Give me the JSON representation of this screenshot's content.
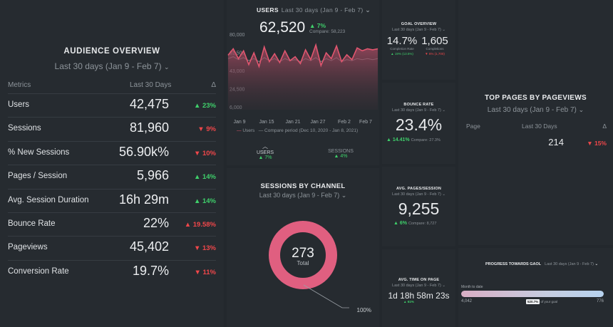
{
  "audience": {
    "title": "AUDIENCE OVERVIEW",
    "range": "Last 30 days (Jan 9 - Feb 7)",
    "headers": {
      "metric": "Metrics",
      "period": "Last 30 Days",
      "delta": "Δ"
    },
    "rows": [
      {
        "label": "Users",
        "value": "42,475",
        "delta": "▲ 23%",
        "dir": "up"
      },
      {
        "label": "Sessions",
        "value": "81,960",
        "delta": "▼ 9%",
        "dir": "down"
      },
      {
        "label": "% New Sessions",
        "value": "56.90k%",
        "delta": "▼ 10%",
        "dir": "down"
      },
      {
        "label": "Pages / Session",
        "value": "5,966",
        "delta": "▲ 14%",
        "dir": "up"
      },
      {
        "label": "Avg. Session Duration",
        "value": "16h 29m",
        "delta": "▲ 14%",
        "dir": "up"
      },
      {
        "label": "Bounce Rate",
        "value": "22%",
        "delta": "▲ 19.58%",
        "dir": "down"
      },
      {
        "label": "Pageviews",
        "value": "45,402",
        "delta": "▼ 13%",
        "dir": "down"
      },
      {
        "label": "Conversion Rate",
        "value": "19.7%",
        "delta": "▼ 11%",
        "dir": "down"
      }
    ]
  },
  "users": {
    "title": "USERS",
    "range": "Last 30 days (Jan 9 - Feb 7)",
    "value": "62,520",
    "delta": "▲ 7%",
    "compare": "Compare: 58,223",
    "legend_current": "Users",
    "legend_compare": "Compare period (Dec 10, 2020 - Jan 8, 2021)",
    "tabs": [
      {
        "label": "USERS",
        "delta": "▲ 7%"
      },
      {
        "label": "SESSIONS",
        "delta": "▲ 4%"
      }
    ],
    "chart_data": {
      "type": "area",
      "y_ticks": [
        "80,000",
        "61,500",
        "43,000",
        "24,500",
        "6,000"
      ],
      "ylim": [
        6000,
        80000
      ],
      "x_ticks": [
        "Jan 9",
        "Jan 15",
        "Jan 21",
        "Jan 27",
        "Feb 2",
        "Feb 7"
      ],
      "series": [
        {
          "name": "Users",
          "color": "#e0566f",
          "values": [
            61500,
            68000,
            58000,
            66000,
            52000,
            64000,
            50000,
            70000,
            55000,
            63000,
            54000,
            66000,
            56000,
            60000,
            53000,
            67000,
            57000,
            72000,
            51000,
            64000,
            58000,
            71000,
            55000,
            62000,
            57000,
            69000,
            66000,
            68000,
            67000,
            68000
          ]
        },
        {
          "name": "Compare period (Dec 10, 2020 - Jan 8, 2021)",
          "color": "#7c7f86",
          "values": [
            58000,
            60000,
            57000,
            59000,
            56000,
            58000,
            55000,
            59000,
            56000,
            58000,
            55000,
            58000,
            56000,
            57000,
            55000,
            58000,
            56000,
            59000,
            55000,
            58000,
            56000,
            59000,
            55000,
            57000,
            56000,
            58000,
            57000,
            58000,
            57000,
            58000
          ]
        }
      ]
    }
  },
  "channel": {
    "title": "SESSIONS BY CHANNEL",
    "range": "Last 30 days (Jan 9 - Feb 7)",
    "total": "273",
    "total_label": "Total",
    "chart_data": {
      "type": "pie",
      "slices": [
        {
          "value": 100,
          "color": "#e05f80"
        }
      ],
      "slice_label": "100%"
    }
  },
  "goal": {
    "title": "GOAL OVERVIEW",
    "range": "Last 30 days (Jan 9 - Feb 7)",
    "a_value": "14.7%",
    "a_label": "Completion Rate",
    "a_delta": "▲ 19% (13.5%)",
    "b_value": "1,605",
    "b_label": "Completions",
    "b_delta": "▼ 6% (1,700)"
  },
  "bounce": {
    "title": "BOUNCE RATE",
    "range": "Last 30 days (Jan 9 - Feb 7)",
    "value": "23.4%",
    "delta": "▲ 14.41%",
    "compare": "Compare: 27.3%"
  },
  "avgpages": {
    "title": "AVG. PAGES/SESSION",
    "range": "Last 30 days (Jan 9 - Feb 7)",
    "value": "9,255",
    "delta": "▲ 6%",
    "compare": "Compare: 8,727"
  },
  "avgtime": {
    "title": "AVG. TIME ON PAGE",
    "range": "Last 30 days (Jan 9 - Feb 7)",
    "value": "1d 18h 58m 23s",
    "delta": "▲ 61%"
  },
  "toppages": {
    "title": "TOP PAGES BY PAGEVIEWS",
    "range": "Last 30 days (Jan 9 - Feb 7)",
    "headers": {
      "page": "Page",
      "period": "Last 30 Days",
      "delta": "Δ"
    },
    "rows": [
      {
        "page": "",
        "value": "214",
        "delta": "▼ 15%",
        "dir": "down"
      }
    ]
  },
  "progress": {
    "title": "PROGRESS TOWARDS GAOL",
    "range": "Last 30 days (Jan 9 - Feb 7)",
    "period_label": "Month to date",
    "start": "4,042",
    "goal": "776",
    "pct": "520.7%",
    "pct_note": "of your goal",
    "fraction": 1.0
  }
}
